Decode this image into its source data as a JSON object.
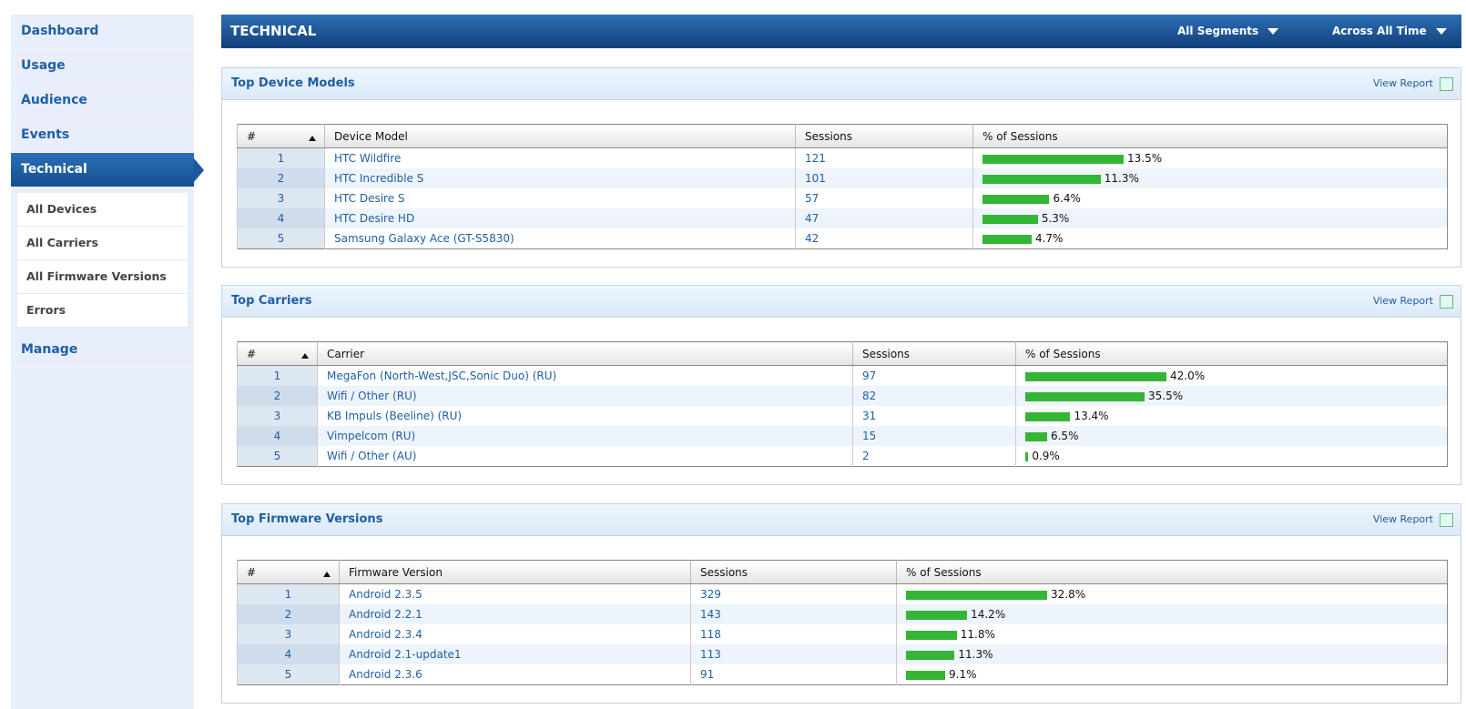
{
  "sidebar": {
    "items": [
      "Dashboard",
      "Usage",
      "Audience",
      "Events",
      "Technical"
    ],
    "subitems": [
      "All Devices",
      "All Carriers",
      "All Firmware Versions",
      "Errors"
    ],
    "footer_item": "Manage"
  },
  "header": {
    "title": "TECHNICAL",
    "segments": "All Segments",
    "time": "Across All Time"
  },
  "panels": [
    {
      "title": "Top Device Models",
      "link": "View Report",
      "columns": [
        "#",
        "Device Model",
        "Sessions",
        "% of Sessions"
      ],
      "rows": [
        {
          "rank": 1,
          "name": "HTC Wildfire",
          "sessions": 121,
          "pct": 13.5,
          "pct_label": "13.5%"
        },
        {
          "rank": 2,
          "name": "HTC Incredible S",
          "sessions": 101,
          "pct": 11.3,
          "pct_label": "11.3%"
        },
        {
          "rank": 3,
          "name": "HTC Desire S",
          "sessions": 57,
          "pct": 6.4,
          "pct_label": "6.4%"
        },
        {
          "rank": 4,
          "name": "HTC Desire HD",
          "sessions": 47,
          "pct": 5.3,
          "pct_label": "5.3%"
        },
        {
          "rank": 5,
          "name": "Samsung Galaxy Ace (GT-S5830)",
          "sessions": 42,
          "pct": 4.7,
          "pct_label": "4.7%"
        }
      ]
    },
    {
      "title": "Top Carriers",
      "link": "View Report",
      "columns": [
        "#",
        "Carrier",
        "Sessions",
        "% of Sessions"
      ],
      "rows": [
        {
          "rank": 1,
          "name": "MegaFon (North-West,JSC,Sonic Duo) (RU)",
          "sessions": 97,
          "pct": 42.0,
          "pct_label": "42.0%"
        },
        {
          "rank": 2,
          "name": "Wifi / Other (RU)",
          "sessions": 82,
          "pct": 35.5,
          "pct_label": "35.5%"
        },
        {
          "rank": 3,
          "name": "KB Impuls (Beeline) (RU)",
          "sessions": 31,
          "pct": 13.4,
          "pct_label": "13.4%"
        },
        {
          "rank": 4,
          "name": "Vimpelcom (RU)",
          "sessions": 15,
          "pct": 6.5,
          "pct_label": "6.5%"
        },
        {
          "rank": 5,
          "name": "Wifi / Other (AU)",
          "sessions": 2,
          "pct": 0.9,
          "pct_label": "0.9%"
        }
      ]
    },
    {
      "title": "Top Firmware Versions",
      "link": "View Report",
      "columns": [
        "#",
        "Firmware Version",
        "Sessions",
        "% of Sessions"
      ],
      "rows": [
        {
          "rank": 1,
          "name": "Android 2.3.5",
          "sessions": 329,
          "pct": 32.8,
          "pct_label": "32.8%"
        },
        {
          "rank": 2,
          "name": "Android 2.2.1",
          "sessions": 143,
          "pct": 14.2,
          "pct_label": "14.2%"
        },
        {
          "rank": 3,
          "name": "Android 2.3.4",
          "sessions": 118,
          "pct": 11.8,
          "pct_label": "11.8%"
        },
        {
          "rank": 4,
          "name": "Android 2.1-update1",
          "sessions": 113,
          "pct": 11.3,
          "pct_label": "11.3%"
        },
        {
          "rank": 5,
          "name": "Android 2.3.6",
          "sessions": 91,
          "pct": 9.1,
          "pct_label": "9.1%"
        }
      ]
    }
  ]
}
